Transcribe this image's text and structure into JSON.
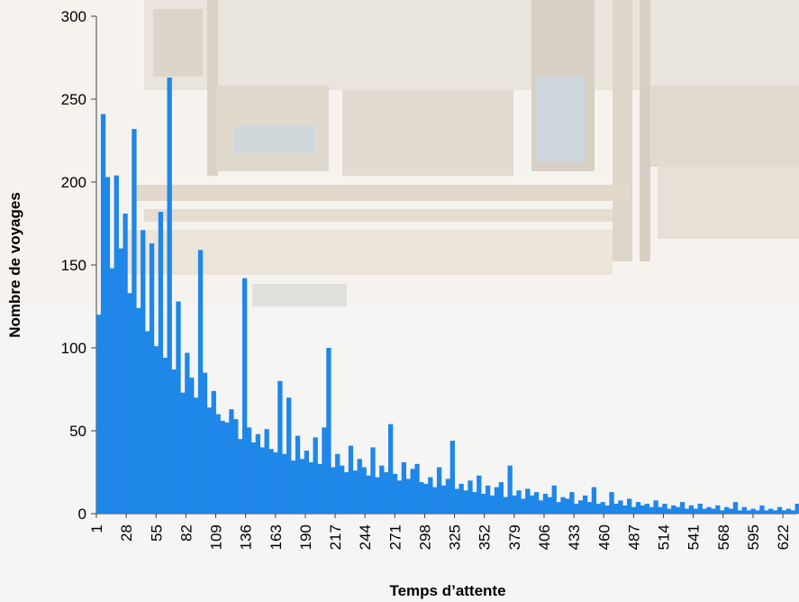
{
  "chart_data": {
    "type": "bar",
    "title": "",
    "xlabel": "Temps d’attente",
    "ylabel": "Nombre de voyages",
    "ylim": [
      0,
      300
    ],
    "y_ticks": [
      0,
      50,
      100,
      150,
      200,
      250,
      300
    ],
    "x_range": [
      1,
      635
    ],
    "x_tick_labels": [
      "1",
      "28",
      "55",
      "82",
      "109",
      "136",
      "163",
      "190",
      "217",
      "244",
      "271",
      "298",
      "325",
      "352",
      "379",
      "406",
      "433",
      "460",
      "487",
      "514",
      "541",
      "568",
      "595",
      "622"
    ],
    "series": [
      {
        "color": "#1f87e8",
        "x": [
          1,
          5,
          9,
          13,
          17,
          21,
          25,
          29,
          33,
          37,
          41,
          45,
          49,
          53,
          57,
          61,
          65,
          69,
          73,
          77,
          81,
          85,
          89,
          93,
          97,
          101,
          105,
          109,
          113,
          117,
          121,
          125,
          129,
          133,
          137,
          141,
          145,
          149,
          153,
          157,
          161,
          165,
          169,
          173,
          177,
          181,
          185,
          189,
          193,
          197,
          201,
          205,
          209,
          213,
          217,
          221,
          225,
          229,
          233,
          237,
          241,
          245,
          249,
          253,
          257,
          261,
          265,
          269,
          273,
          277,
          281,
          285,
          289,
          293,
          297,
          301,
          305,
          309,
          313,
          317,
          321,
          325,
          329,
          333,
          337,
          341,
          345,
          349,
          353,
          357,
          361,
          365,
          369,
          373,
          377,
          381,
          385,
          389,
          393,
          397,
          401,
          405,
          409,
          413,
          417,
          421,
          425,
          429,
          433,
          437,
          441,
          445,
          449,
          453,
          457,
          461,
          465,
          469,
          473,
          477,
          481,
          485,
          489,
          493,
          497,
          501,
          505,
          509,
          513,
          517,
          521,
          525,
          529,
          533,
          537,
          541,
          545,
          549,
          553,
          557,
          561,
          565,
          569,
          573,
          577,
          581,
          585,
          589,
          593,
          597,
          601,
          605,
          609,
          613,
          617,
          621,
          625,
          629,
          633
        ],
        "values": [
          120,
          241,
          203,
          148,
          204,
          160,
          181,
          133,
          232,
          124,
          171,
          110,
          163,
          101,
          182,
          94,
          263,
          87,
          128,
          73,
          97,
          82,
          70,
          159,
          85,
          64,
          74,
          60,
          56,
          55,
          63,
          57,
          45,
          142,
          52,
          43,
          48,
          40,
          51,
          39,
          37,
          80,
          36,
          70,
          32,
          47,
          33,
          38,
          31,
          46,
          30,
          52,
          100,
          28,
          36,
          29,
          25,
          41,
          26,
          33,
          28,
          23,
          40,
          22,
          29,
          25,
          54,
          24,
          20,
          31,
          21,
          27,
          30,
          19,
          18,
          22,
          16,
          28,
          17,
          21,
          44,
          15,
          18,
          14,
          20,
          13,
          23,
          12,
          17,
          11,
          16,
          19,
          10,
          29,
          11,
          14,
          9,
          15,
          11,
          13,
          8,
          12,
          10,
          17,
          7,
          10,
          9,
          13,
          6,
          8,
          11,
          7,
          16,
          6,
          7,
          5,
          13,
          6,
          8,
          5,
          9,
          4,
          7,
          5,
          6,
          4,
          8,
          4,
          6,
          3,
          5,
          4,
          7,
          3,
          5,
          3,
          6,
          3,
          4,
          3,
          5,
          2,
          4,
          3,
          7,
          2,
          4,
          2,
          3,
          2,
          5,
          2,
          3,
          2,
          4,
          2,
          3,
          2,
          6
        ]
      }
    ]
  }
}
